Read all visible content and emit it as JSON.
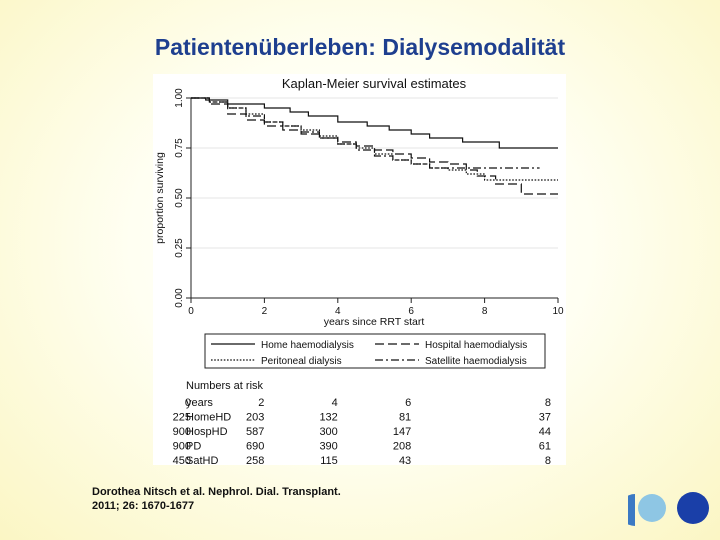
{
  "slide": {
    "title": "Patientenüberleben: Dialysemodalität",
    "citation_line1": "Dorothea Nitsch et al. Nephrol. Dial. Transplant.",
    "citation_line2": "2011; 26: 1670-1677"
  },
  "logo": {
    "colors": [
      "#8ec6e4",
      "#3b79c4",
      "#1a3fa8"
    ]
  },
  "chart_data": {
    "type": "line",
    "title": "Kaplan-Meier survival estimates",
    "xlabel": "years since RRT start",
    "ylabel": "proportion surviving",
    "xlim": [
      0,
      10
    ],
    "ylim": [
      0,
      1
    ],
    "x_ticks": [
      "0",
      "2",
      "4",
      "6",
      "8",
      "10"
    ],
    "y_ticks": [
      "0.00",
      "0.25",
      "0.50",
      "0.75",
      "1.00"
    ],
    "grid": "horizontal",
    "legend": {
      "position": "bottom",
      "entries": [
        "Home haemodialysis",
        "Hospital haemodialysis",
        "Peritoneal dialysis",
        "Satellite haemodialysis"
      ]
    },
    "series": [
      {
        "name": "Home haemodialysis",
        "dash": "solid",
        "x": [
          0,
          0.4,
          1,
          2,
          2.7,
          3.2,
          4,
          4.8,
          5.4,
          6,
          6.5,
          7.4,
          8.4,
          10
        ],
        "y": [
          1.0,
          0.99,
          0.97,
          0.95,
          0.93,
          0.91,
          0.88,
          0.86,
          0.84,
          0.82,
          0.8,
          0.78,
          0.75,
          0.75
        ]
      },
      {
        "name": "Hospital haemodialysis",
        "dash": "long-dash",
        "x": [
          0,
          0.5,
          1,
          1.5,
          2,
          2.5,
          3,
          3.5,
          4,
          4.5,
          5,
          5.5,
          6,
          6.5,
          7,
          7.5,
          7.8,
          8.3,
          9,
          10
        ],
        "y": [
          1.0,
          0.97,
          0.92,
          0.89,
          0.86,
          0.84,
          0.82,
          0.8,
          0.78,
          0.76,
          0.74,
          0.72,
          0.7,
          0.68,
          0.67,
          0.64,
          0.61,
          0.57,
          0.52,
          0.52
        ]
      },
      {
        "name": "Peritoneal dialysis",
        "dash": "dotted",
        "x": [
          0,
          0.5,
          1,
          1.5,
          2,
          2.5,
          3,
          3.5,
          4,
          4.5,
          5,
          5.5,
          6,
          6.5,
          7,
          7.5,
          8,
          10
        ],
        "y": [
          1.0,
          0.98,
          0.95,
          0.92,
          0.88,
          0.86,
          0.84,
          0.81,
          0.77,
          0.75,
          0.72,
          0.69,
          0.67,
          0.65,
          0.64,
          0.62,
          0.59,
          0.59
        ]
      },
      {
        "name": "Satellite haemodialysis",
        "dash": "dash-dot",
        "x": [
          0,
          0.5,
          1,
          1.5,
          2,
          2.5,
          3,
          3.5,
          4,
          4.5,
          5,
          5.5,
          6,
          6.5,
          8,
          9.5
        ],
        "y": [
          1.0,
          0.98,
          0.95,
          0.91,
          0.88,
          0.86,
          0.83,
          0.8,
          0.77,
          0.74,
          0.71,
          0.69,
          0.67,
          0.65,
          0.65,
          0.65
        ]
      }
    ],
    "risk_table": {
      "title": "Numbers at risk",
      "header": [
        "years",
        "0",
        "2",
        "4",
        "6",
        "8"
      ],
      "rows": [
        {
          "label": "HomeHD",
          "values": [
            "225",
            "203",
            "132",
            "81",
            "37"
          ]
        },
        {
          "label": "HospHD",
          "values": [
            "900",
            "587",
            "300",
            "147",
            "44"
          ]
        },
        {
          "label": "PD",
          "values": [
            "900",
            "690",
            "390",
            "208",
            "61"
          ]
        },
        {
          "label": "SatHD",
          "values": [
            "450",
            "258",
            "115",
            "43",
            "8"
          ]
        }
      ]
    }
  }
}
